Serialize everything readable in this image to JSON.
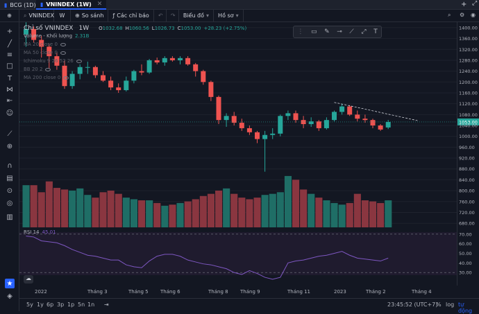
{
  "tabs": [
    {
      "label": "BCG (1D)"
    },
    {
      "label": "VNINDEX (1W)"
    }
  ],
  "toolbar": {
    "symbol": "VNINDEX",
    "interval": "W",
    "compare": "So sánh",
    "indicators": "Các chỉ báo",
    "chart_type": "Biểu đồ",
    "profile": "Hồ sơ"
  },
  "legend": {
    "title": "Chỉ số VNINDEX",
    "interval": "1W",
    "ohlc": {
      "o_label": "O",
      "o": "1032.68",
      "h_label": "H",
      "h": "1060.56",
      "l_label": "L",
      "l": "1026.73",
      "c_label": "C",
      "c": "1053.00",
      "change": "+28.23 (+2.75%)"
    },
    "volume": {
      "label": "Volume - Khối lượng",
      "value": "2.31B"
    },
    "indicators": [
      "MA 20 close 0",
      "MA 50 close 0",
      "Ichimoku 9 26 52 26",
      "BB 20 2",
      "MA 200 close 0"
    ],
    "rsi": {
      "label": "RSI 14",
      "value": "45.01"
    }
  },
  "price_axis": {
    "ticks": [
      "1400.00",
      "1360.00",
      "1320.00",
      "1280.00",
      "1240.00",
      "1200.00",
      "1160.00",
      "1120.00",
      "1080.00",
      "1053.00",
      "1040.00",
      "1000.00",
      "960.00",
      "920.00",
      "880.00",
      "840.00",
      "800.00",
      "760.00",
      "720.00",
      "680.00"
    ],
    "rsi_ticks": [
      "70.00",
      "60.00",
      "50.00",
      "40.00",
      "30.00"
    ],
    "last_price": "1053.00"
  },
  "time_axis": [
    "2022",
    "Tháng 3",
    "Tháng 5",
    "Tháng 6",
    "Tháng 8",
    "Tháng 9",
    "Tháng 11",
    "2023",
    "Tháng 2",
    "Tháng 4"
  ],
  "bottom": {
    "ranges": [
      "5y",
      "1y",
      "6p",
      "3p",
      "1p",
      "5n",
      "1n"
    ],
    "time": "23:45:52 (UTC+7)",
    "pct": "%",
    "log": "log",
    "auto": "tự động"
  },
  "colors": {
    "up": "#26a69a",
    "down": "#ef5350",
    "rsi": "#7e57c2",
    "accent": "#2962ff"
  },
  "chart_data": {
    "type": "candlestick",
    "candles": [
      {
        "o": 1375,
        "h": 1420,
        "l": 1330,
        "c": 1395
      },
      {
        "o": 1395,
        "h": 1405,
        "l": 1345,
        "c": 1355
      },
      {
        "o": 1355,
        "h": 1370,
        "l": 1290,
        "c": 1330
      },
      {
        "o": 1330,
        "h": 1340,
        "l": 1250,
        "c": 1295
      },
      {
        "o": 1295,
        "h": 1310,
        "l": 1245,
        "c": 1260
      },
      {
        "o": 1260,
        "h": 1280,
        "l": 1175,
        "c": 1185
      },
      {
        "o": 1185,
        "h": 1240,
        "l": 1175,
        "c": 1230
      },
      {
        "o": 1230,
        "h": 1265,
        "l": 1210,
        "c": 1255
      },
      {
        "o": 1255,
        "h": 1275,
        "l": 1230,
        "c": 1255
      },
      {
        "o": 1255,
        "h": 1260,
        "l": 1215,
        "c": 1225
      },
      {
        "o": 1225,
        "h": 1240,
        "l": 1200,
        "c": 1205
      },
      {
        "o": 1205,
        "h": 1220,
        "l": 1170,
        "c": 1180
      },
      {
        "o": 1180,
        "h": 1195,
        "l": 1160,
        "c": 1170
      },
      {
        "o": 1170,
        "h": 1220,
        "l": 1165,
        "c": 1205
      },
      {
        "o": 1205,
        "h": 1245,
        "l": 1195,
        "c": 1240
      },
      {
        "o": 1240,
        "h": 1265,
        "l": 1225,
        "c": 1235
      },
      {
        "o": 1235,
        "h": 1285,
        "l": 1230,
        "c": 1280
      },
      {
        "o": 1280,
        "h": 1290,
        "l": 1265,
        "c": 1272
      },
      {
        "o": 1272,
        "h": 1295,
        "l": 1260,
        "c": 1288
      },
      {
        "o": 1288,
        "h": 1295,
        "l": 1275,
        "c": 1280
      },
      {
        "o": 1280,
        "h": 1295,
        "l": 1265,
        "c": 1288
      },
      {
        "o": 1288,
        "h": 1295,
        "l": 1260,
        "c": 1265
      },
      {
        "o": 1265,
        "h": 1270,
        "l": 1220,
        "c": 1240
      },
      {
        "o": 1240,
        "h": 1245,
        "l": 1190,
        "c": 1200
      },
      {
        "o": 1200,
        "h": 1205,
        "l": 1130,
        "c": 1145
      },
      {
        "o": 1145,
        "h": 1150,
        "l": 1045,
        "c": 1060
      },
      {
        "o": 1060,
        "h": 1085,
        "l": 1035,
        "c": 1075
      },
      {
        "o": 1075,
        "h": 1090,
        "l": 1040,
        "c": 1050
      },
      {
        "o": 1050,
        "h": 1065,
        "l": 1020,
        "c": 1030
      },
      {
        "o": 1030,
        "h": 1040,
        "l": 1005,
        "c": 1015
      },
      {
        "o": 1015,
        "h": 1020,
        "l": 975,
        "c": 990
      },
      {
        "o": 990,
        "h": 1020,
        "l": 870,
        "c": 1005
      },
      {
        "o": 1005,
        "h": 1030,
        "l": 990,
        "c": 1010
      },
      {
        "o": 1010,
        "h": 1080,
        "l": 1000,
        "c": 1075
      },
      {
        "o": 1075,
        "h": 1095,
        "l": 1060,
        "c": 1085
      },
      {
        "o": 1085,
        "h": 1095,
        "l": 1050,
        "c": 1060
      },
      {
        "o": 1060,
        "h": 1075,
        "l": 1030,
        "c": 1045
      },
      {
        "o": 1045,
        "h": 1070,
        "l": 1035,
        "c": 1055
      },
      {
        "o": 1055,
        "h": 1060,
        "l": 1020,
        "c": 1030
      },
      {
        "o": 1030,
        "h": 1070,
        "l": 1025,
        "c": 1060
      },
      {
        "o": 1060,
        "h": 1095,
        "l": 1055,
        "c": 1090
      },
      {
        "o": 1090,
        "h": 1120,
        "l": 1080,
        "c": 1110
      },
      {
        "o": 1110,
        "h": 1115,
        "l": 1075,
        "c": 1080
      },
      {
        "o": 1080,
        "h": 1095,
        "l": 1055,
        "c": 1065
      },
      {
        "o": 1065,
        "h": 1080,
        "l": 1050,
        "c": 1060
      },
      {
        "o": 1060,
        "h": 1065,
        "l": 1030,
        "c": 1040
      },
      {
        "o": 1040,
        "h": 1045,
        "l": 1020,
        "c": 1025
      },
      {
        "o": 1032.68,
        "h": 1060.56,
        "l": 1026.73,
        "c": 1053
      }
    ],
    "volume_rel": [
      0.78,
      0.78,
      0.65,
      0.85,
      0.73,
      0.7,
      0.68,
      0.72,
      0.6,
      0.55,
      0.65,
      0.68,
      0.62,
      0.55,
      0.52,
      0.5,
      0.5,
      0.45,
      0.4,
      0.42,
      0.45,
      0.48,
      0.52,
      0.58,
      0.62,
      0.68,
      0.72,
      0.62,
      0.55,
      0.52,
      0.55,
      0.6,
      0.62,
      0.65,
      0.95,
      0.88,
      0.7,
      0.62,
      0.55,
      0.5,
      0.45,
      0.42,
      0.45,
      0.62,
      0.5,
      0.48,
      0.45,
      0.5
    ],
    "rsi": [
      68,
      67,
      63,
      62,
      61,
      58,
      54,
      51,
      48,
      47,
      45,
      43,
      43,
      38,
      36,
      35,
      42,
      47,
      49,
      49,
      47,
      43,
      41,
      39,
      38,
      36,
      34,
      30,
      28,
      32,
      29,
      25,
      23,
      25,
      40,
      42,
      43,
      45,
      47,
      48,
      50,
      52,
      48,
      45,
      44,
      43,
      42,
      45.01
    ],
    "trendline": {
      "from_index": 40,
      "from_price": 1125,
      "to_index": 49,
      "to_price": 1058
    },
    "ylim": [
      665,
      1410
    ],
    "rsi_lim": [
      20,
      72
    ]
  }
}
